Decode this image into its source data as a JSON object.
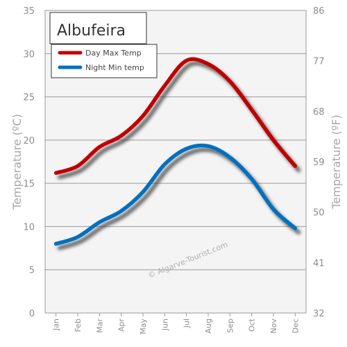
{
  "chart_data": {
    "type": "line",
    "title": "Albufeira",
    "categories": [
      "Jan",
      "Feb",
      "Mar",
      "Apr",
      "May",
      "Jun",
      "Jul",
      "Aug",
      "Sep",
      "Oct",
      "Nov",
      "Dec"
    ],
    "series": [
      {
        "name": "Day Max Temp",
        "color": "#c00000",
        "values": [
          16.2,
          17,
          19.2,
          20.5,
          22.8,
          26.3,
          29.2,
          28.8,
          26.8,
          23.5,
          20,
          17
        ]
      },
      {
        "name": "Night Min temp",
        "color": "#0070c0",
        "values": [
          8,
          8.8,
          10.5,
          11.8,
          14,
          17.2,
          19,
          19.3,
          18,
          15.5,
          12,
          9.8
        ]
      }
    ],
    "ylabel": "Temperature (ºC)",
    "ylabel_right": "Temperature (ºF)",
    "ylim": [
      0,
      35
    ],
    "yticks": [
      "0",
      "5",
      "10",
      "15",
      "20",
      "25",
      "30",
      "35"
    ],
    "ylim_right": [
      32,
      86
    ],
    "yticks_right": [
      "32",
      "41",
      "50",
      "59",
      "68",
      "77",
      "86"
    ],
    "grid": true,
    "legend_position": "top-left",
    "watermark": "© Algarve-Tourist.com"
  }
}
